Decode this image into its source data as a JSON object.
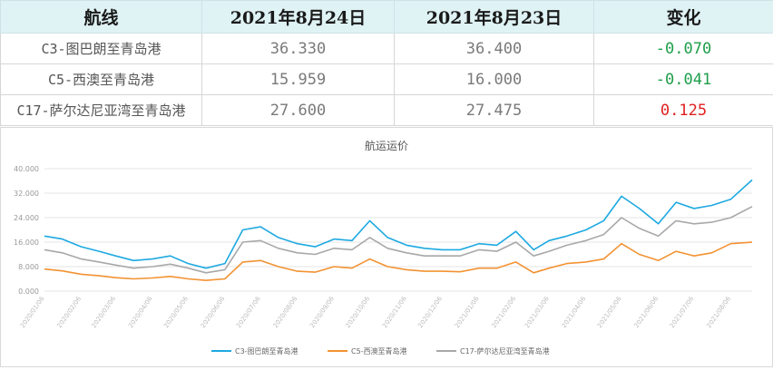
{
  "table": {
    "headers": [
      "航线",
      "2021年8月24日",
      "2021年8月23日",
      "变化"
    ],
    "rows": [
      {
        "route": "C3-图巴朗至青岛港",
        "v1": "36.330",
        "v2": "36.400",
        "change": "-0.070"
      },
      {
        "route": "C5-西澳至青岛港",
        "v1": "15.959",
        "v2": "16.000",
        "change": "-0.041"
      },
      {
        "route": "C17-萨尔达尼亚湾至青岛港",
        "v1": "27.600",
        "v2": "27.475",
        "change": "0.125"
      }
    ]
  },
  "colors": {
    "c3": "#1ea9e1",
    "c5": "#f39232",
    "c17": "#a8a8a8",
    "neg": "#1e9e4a",
    "pos": "#e02020"
  },
  "chart_data": {
    "type": "line",
    "title": "航运运价",
    "ylim": [
      0,
      40
    ],
    "yticks": [
      "0.000",
      "8.000",
      "16.000",
      "24.000",
      "32.000",
      "40.000"
    ],
    "xticks": [
      "2020/01/06",
      "2020/02/06",
      "2020/03/06",
      "2020/04/06",
      "2020/05/06",
      "2020/06/06",
      "2020/07/06",
      "2020/08/06",
      "2020/09/06",
      "2020/10/06",
      "2020/11/06",
      "2020/12/06",
      "2021/01/06",
      "2021/02/06",
      "2021/03/06",
      "2021/04/06",
      "2021/05/06",
      "2021/06/06",
      "2021/07/06",
      "2021/08/06"
    ],
    "legend_position": "bottom",
    "grid": true,
    "x": [
      "2020/01/06",
      "2020/01/21",
      "2020/02/06",
      "2020/02/21",
      "2020/03/06",
      "2020/03/21",
      "2020/04/06",
      "2020/04/21",
      "2020/05/06",
      "2020/05/21",
      "2020/06/06",
      "2020/06/21",
      "2020/07/06",
      "2020/07/21",
      "2020/08/06",
      "2020/08/21",
      "2020/09/06",
      "2020/09/21",
      "2020/10/06",
      "2020/10/21",
      "2020/11/06",
      "2020/11/21",
      "2020/12/06",
      "2020/12/21",
      "2021/01/06",
      "2021/01/21",
      "2021/02/06",
      "2021/02/21",
      "2021/03/06",
      "2021/03/21",
      "2021/04/06",
      "2021/04/21",
      "2021/05/06",
      "2021/05/21",
      "2021/06/06",
      "2021/06/21",
      "2021/07/06",
      "2021/07/21",
      "2021/08/06",
      "2021/08/24"
    ],
    "series": [
      {
        "name": "C3-图巴朗至青岛港",
        "color": "#1ea9e1",
        "values": [
          18.0,
          17.0,
          14.5,
          13.0,
          11.5,
          10.0,
          10.5,
          11.5,
          9.0,
          7.5,
          9.0,
          20.0,
          21.0,
          17.5,
          15.5,
          14.5,
          17.0,
          16.5,
          23.0,
          17.5,
          15.0,
          14.0,
          13.5,
          13.5,
          15.5,
          15.0,
          19.5,
          13.5,
          16.5,
          18.0,
          20.0,
          23.0,
          31.0,
          27.0,
          22.0,
          29.0,
          27.0,
          28.0,
          30.0,
          36.33
        ]
      },
      {
        "name": "C5-西澳至青岛港",
        "color": "#f39232",
        "values": [
          7.2,
          6.6,
          5.5,
          5.0,
          4.4,
          4.0,
          4.3,
          4.8,
          4.0,
          3.5,
          4.0,
          9.5,
          10.0,
          8.0,
          6.5,
          6.2,
          8.0,
          7.5,
          10.5,
          8.0,
          7.0,
          6.5,
          6.5,
          6.3,
          7.5,
          7.5,
          9.5,
          6.0,
          7.5,
          9.0,
          9.5,
          10.5,
          15.5,
          12.0,
          10.0,
          13.0,
          11.5,
          12.5,
          15.5,
          15.959
        ]
      },
      {
        "name": "C17-萨尔达尼亚湾至青岛港",
        "color": "#a8a8a8",
        "values": [
          13.5,
          12.5,
          10.5,
          9.5,
          8.5,
          7.5,
          8.0,
          8.8,
          7.5,
          6.0,
          7.0,
          16.0,
          16.5,
          14.0,
          12.5,
          12.0,
          14.0,
          13.5,
          17.5,
          14.0,
          12.5,
          11.5,
          11.5,
          11.5,
          13.5,
          13.0,
          16.0,
          11.5,
          13.0,
          15.0,
          16.5,
          18.5,
          24.0,
          20.5,
          18.0,
          23.0,
          22.0,
          22.5,
          24.0,
          27.6
        ]
      }
    ]
  }
}
